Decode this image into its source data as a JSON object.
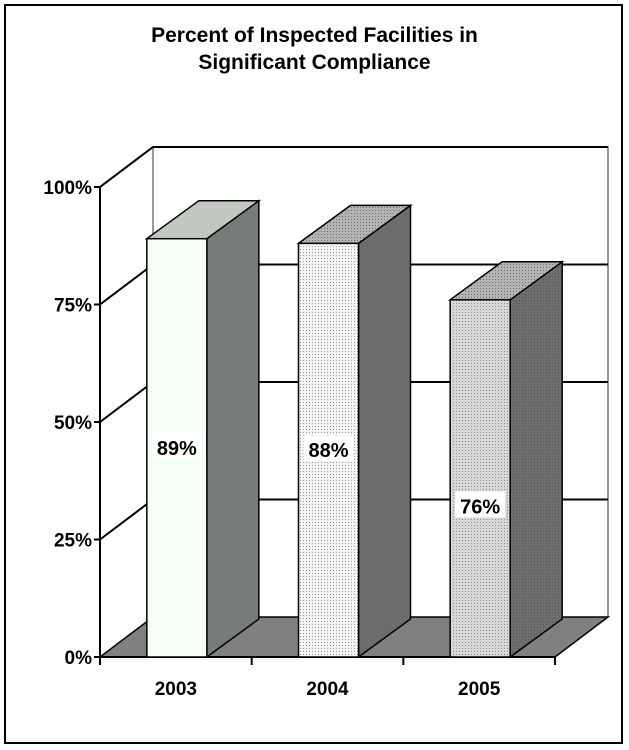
{
  "chart_data": {
    "type": "bar",
    "title_lines": [
      "Percent of Inspected Facilities in",
      "Significant Compliance"
    ],
    "categories": [
      "2003",
      "2004",
      "2005"
    ],
    "values": [
      89,
      88,
      76
    ],
    "data_labels": [
      "89%",
      "88%",
      "76%"
    ],
    "ylim": [
      0,
      100
    ],
    "yticks": [
      0,
      25,
      50,
      75,
      100
    ],
    "ytick_labels": [
      "0%",
      "25%",
      "50%",
      "75%",
      "100%"
    ],
    "xlabel": "",
    "ylabel": "",
    "grid": true,
    "legend": "none"
  },
  "colors": {
    "floor": "#808080",
    "bar_fronts": [
      "#f5fff5",
      "#ececec",
      "#cfcfcf"
    ],
    "bar_sides": [
      "#787c78",
      "#6c6c6c",
      "#666666"
    ],
    "bar_tops": [
      "#c2c7c2",
      "#a8a8a8",
      "#9a9a9a"
    ],
    "axis": "#000000",
    "back_wall": "#999999"
  }
}
